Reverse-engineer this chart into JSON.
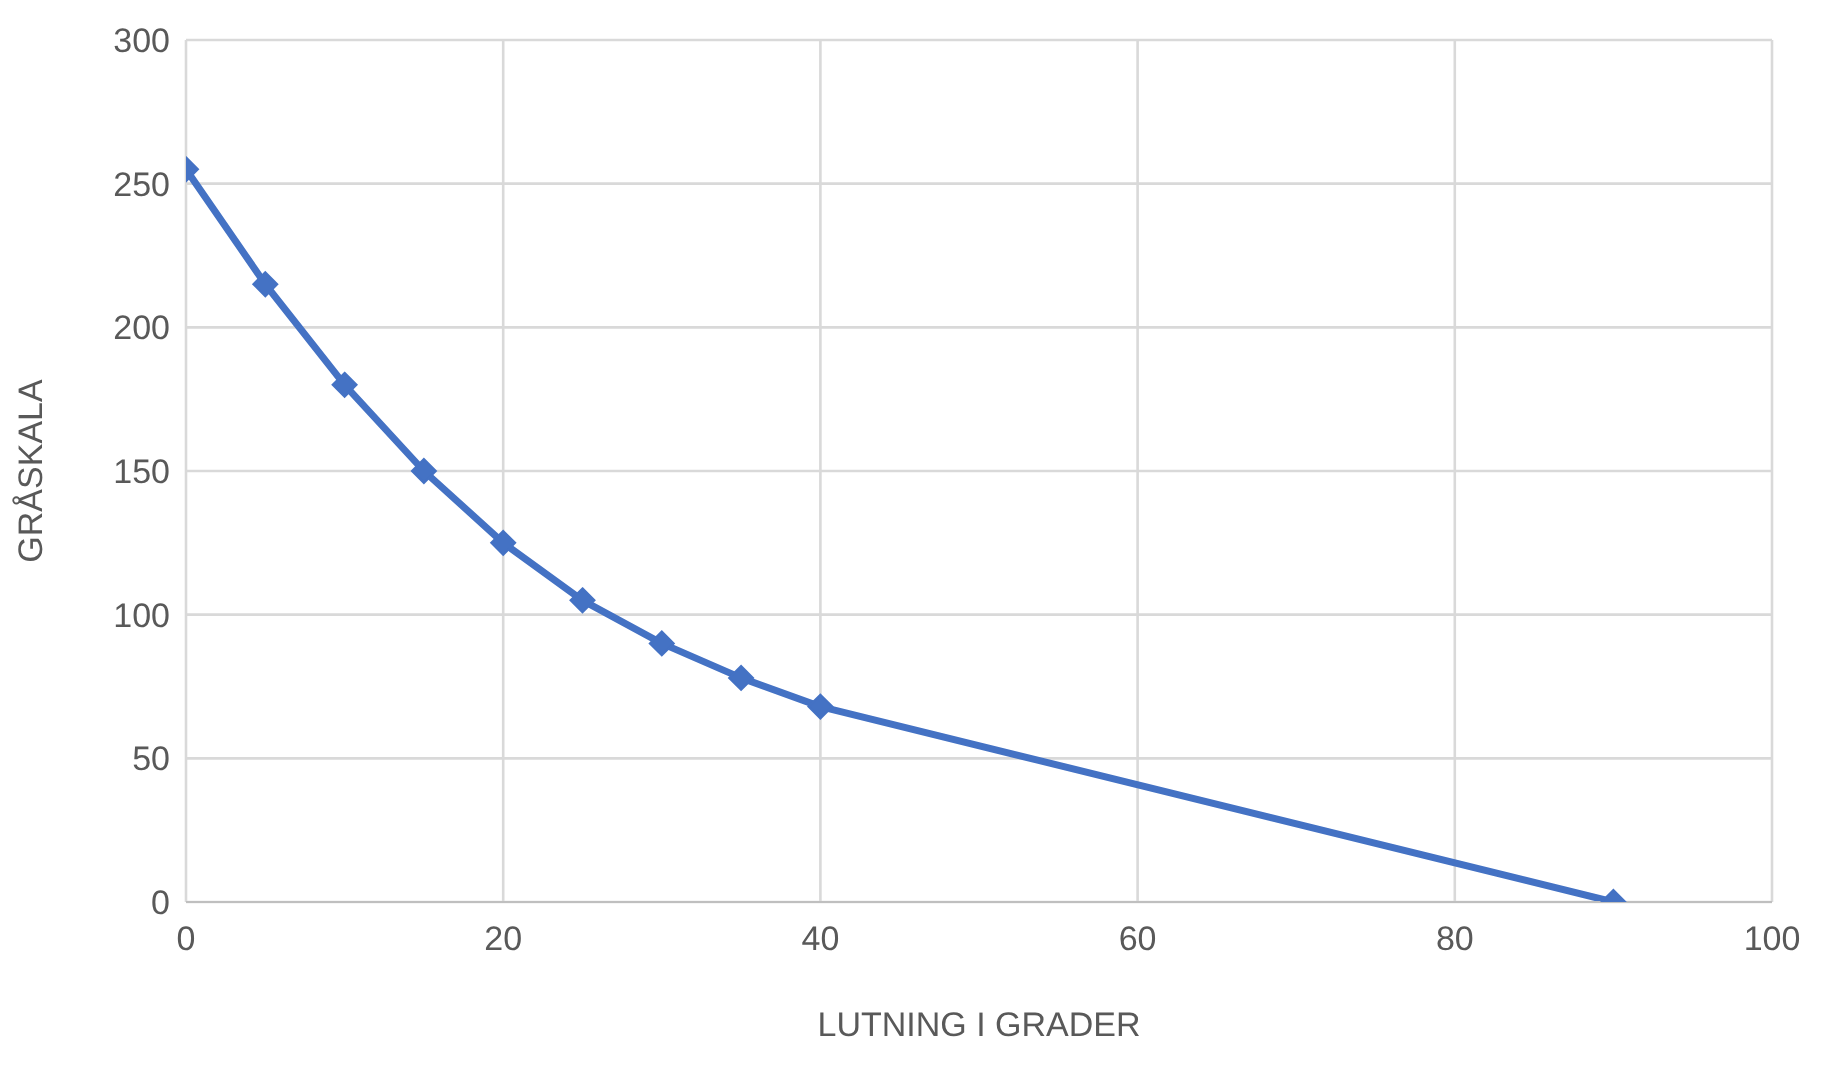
{
  "chart_data": {
    "type": "line",
    "xlabel": "LUTNING I GRADER",
    "ylabel": "GRÅSKALA",
    "x": [
      0,
      5,
      10,
      15,
      20,
      25,
      30,
      35,
      40,
      90
    ],
    "series": [
      {
        "color": "#4472c4",
        "values": [
          255,
          215,
          180,
          150,
          125,
          105,
          90,
          78,
          68,
          0
        ]
      }
    ],
    "xlim": [
      0,
      100
    ],
    "xticks": [
      0,
      20,
      40,
      60,
      80,
      100
    ],
    "ylim": [
      0,
      300
    ],
    "yticks": [
      0,
      50,
      100,
      150,
      200,
      250,
      300
    ],
    "grid": true,
    "marker": "diamond",
    "line_style": "solid"
  }
}
